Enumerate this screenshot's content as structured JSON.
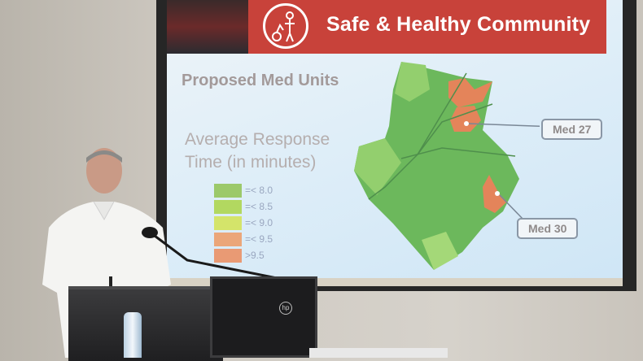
{
  "slide": {
    "banner_title": "Safe & Healthy Community",
    "banner_icon": "family-icon",
    "subtitle": "Proposed Med Units",
    "legend_title_line1": "Average Response",
    "legend_title_line2": "Time (in minutes)",
    "legend": [
      {
        "label": "=< 8.0",
        "color": "#9cc96a"
      },
      {
        "label": "=< 8.5",
        "color": "#b2d860"
      },
      {
        "label": "=< 9.0",
        "color": "#d4e46a"
      },
      {
        "label": "=< 9.5",
        "color": "#eba679"
      },
      {
        "label": ">9.5",
        "color": "#e99a74"
      }
    ],
    "callouts": [
      "Med 27",
      "Med 30"
    ],
    "map_colors": {
      "green_dark": "#64b35a",
      "green_light": "#93cf6e",
      "orange": "#e4845a"
    }
  },
  "monitor": {
    "logo": "hp"
  }
}
